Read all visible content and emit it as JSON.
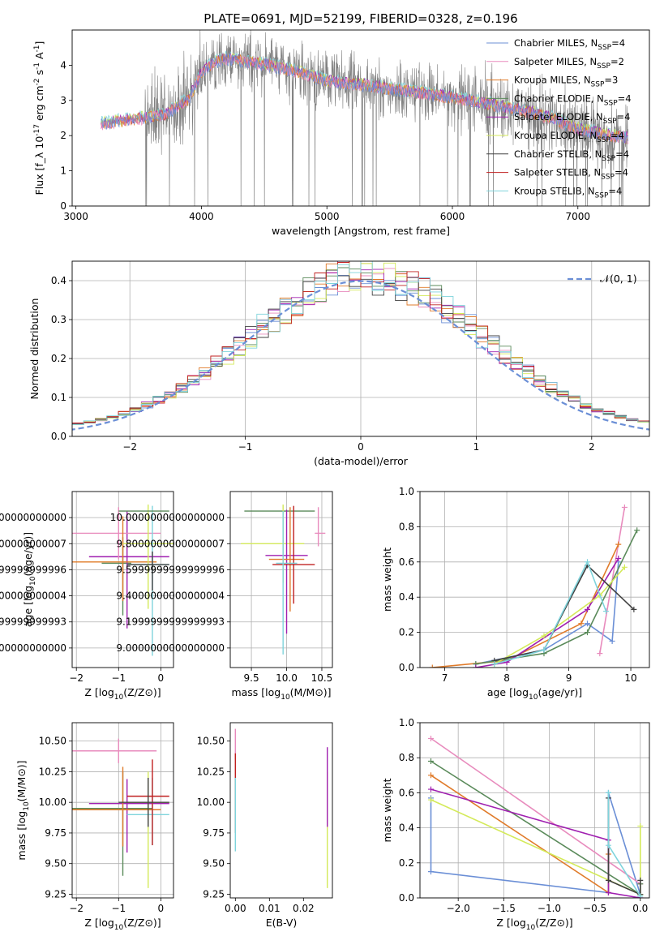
{
  "chart_data": [
    {
      "type": "line",
      "title": "PLATE=0691, MJD=52199, FIBERID=0328, z=0.196",
      "xlabel": "wavelength [Angstrom, rest frame]",
      "ylabel": "Flux [f_λ 10^-17 erg cm^-2 s^-1 A^-1]",
      "xlim": [
        2970,
        7570
      ],
      "ylim": [
        0,
        5
      ],
      "xticks": [
        3000,
        4000,
        5000,
        6000,
        7000
      ],
      "yticks": [
        0,
        1,
        2,
        3,
        4
      ],
      "grid": false,
      "legend": "top-right",
      "legend_entries": [
        "Chabrier MILES, N_SSP=4",
        "Salpeter MILES, N_SSP=2",
        "Kroupa MILES, N_SSP=3",
        "Chabrier ELODIE, N_SSP=4",
        "Salpeter ELODIE, N_SSP=4",
        "Kroupa ELODIE, N_SSP=4",
        "Chabrier STELIB, N_SSP=4",
        "Salpeter STELIB, N_SSP=4",
        "Kroupa STELIB, N_SSP=4"
      ],
      "series_colors": [
        "#6b8fd6",
        "#e88bbd",
        "#e07b2a",
        "#5a8a5a",
        "#a020b0",
        "#d4ea5a",
        "#404040",
        "#c02020",
        "#7fd4dc"
      ],
      "spectrum_continuum": {
        "x": [
          3200,
          3500,
          3700,
          3900,
          4000,
          4100,
          4200,
          4500,
          4800,
          5000,
          5300,
          5600,
          6000,
          6300,
          6600,
          6800,
          7000,
          7300,
          7400
        ],
        "y": [
          2.35,
          2.5,
          2.6,
          3.05,
          3.8,
          4.1,
          4.2,
          4.05,
          3.8,
          3.55,
          3.45,
          3.3,
          3.1,
          2.9,
          2.7,
          2.5,
          2.2,
          2.0,
          1.95
        ]
      }
    },
    {
      "type": "bar",
      "xlabel": "(data-model)/error",
      "ylabel": "Normed distribution",
      "xlim": [
        -2.5,
        2.5
      ],
      "ylim": [
        0,
        0.45
      ],
      "xticks": [
        -2,
        -1,
        0,
        1,
        2
      ],
      "yticks": [
        0.0,
        0.1,
        0.2,
        0.3,
        0.4
      ],
      "grid": true,
      "legend": "top-right",
      "legend_entries": [
        "𝒩(0, 1)"
      ],
      "reference_color": "#6b8fd6"
    },
    {
      "type": "scatter",
      "xlabel": "Z [log10(Z/Z⊙)]",
      "ylabel": "age  [log10(age/yr)]",
      "xlim": [
        -2.1,
        0.3
      ],
      "ylim": [
        8.85,
        10.2
      ],
      "xticks": [
        -2,
        -1,
        0
      ],
      "yticks": [
        9.0,
        9.2,
        9.4,
        9.6,
        9.8,
        10.0
      ],
      "grid": true,
      "points": [
        {
          "x": -0.9,
          "y": 9.65,
          "xerr": [
            0.5,
            0.2
          ],
          "yerr": [
            0.4,
            0.2
          ],
          "color": "#5a8a5a"
        },
        {
          "x": -0.8,
          "y": 9.7,
          "xerr": [
            0.9,
            1.0
          ],
          "yerr": [
            0.55,
            0.35
          ],
          "color": "#a020b0"
        },
        {
          "x": -1.0,
          "y": 9.88,
          "xerr": [
            1.1,
            1.0
          ],
          "yerr": [
            0.2,
            0.2
          ],
          "color": "#e88bbd"
        },
        {
          "x": -0.9,
          "y": 9.66,
          "xerr": [
            1.2,
            0.8
          ],
          "yerr": [
            0.3,
            0.35
          ],
          "color": "#e07b2a"
        },
        {
          "x": -0.3,
          "y": 9.8,
          "xerr": [
            0.6,
            0.6
          ],
          "yerr": [
            0.5,
            0.3
          ],
          "color": "#d4ea5a"
        },
        {
          "x": -0.2,
          "y": 9.64,
          "xerr": [
            0.6,
            0.4
          ],
          "yerr": [
            0.7,
            0.45
          ],
          "color": "#7fd4dc"
        },
        {
          "x": -0.3,
          "y": 10.05,
          "xerr": [
            0.7,
            0.5
          ],
          "yerr": [
            0.0,
            0.0
          ],
          "color": "#5a8a5a"
        },
        {
          "x": -0.2,
          "y": 9.64,
          "xerr": [
            0.6,
            0.4
          ],
          "yerr": [
            0.2,
            0.1
          ],
          "color": "#404040"
        }
      ]
    },
    {
      "type": "scatter",
      "xlabel": "mass [log10(M/M⊙)]",
      "ylabel": "",
      "xlim": [
        9.2,
        10.65
      ],
      "ylim": [
        8.85,
        10.2
      ],
      "xticks": [
        9.5,
        10.0,
        10.5
      ],
      "yticks": [
        9.0,
        9.2,
        9.4,
        9.6,
        9.8,
        10.0
      ],
      "grid": true,
      "points": [
        {
          "x": 10.0,
          "y": 10.05,
          "xerr": [
            0.6,
            0.4
          ],
          "yerr": [
            0.0,
            0.0
          ],
          "color": "#5a8a5a"
        },
        {
          "x": 9.95,
          "y": 9.8,
          "xerr": [
            0.6,
            0.3
          ],
          "yerr": [
            0.3,
            0.3
          ],
          "color": "#d4ea5a"
        },
        {
          "x": 10.0,
          "y": 9.71,
          "xerr": [
            0.3,
            0.3
          ],
          "yerr": [
            0.6,
            0.35
          ],
          "color": "#a020b0"
        },
        {
          "x": 10.05,
          "y": 9.68,
          "xerr": [
            0.3,
            0.2
          ],
          "yerr": [
            0.4,
            0.4
          ],
          "color": "#e07b2a"
        },
        {
          "x": 10.1,
          "y": 9.64,
          "xerr": [
            0.3,
            0.3
          ],
          "yerr": [
            0.3,
            0.45
          ],
          "color": "#c02020"
        },
        {
          "x": 9.95,
          "y": 9.65,
          "xerr": [
            0.1,
            0.2
          ],
          "yerr": [
            0.7,
            0.4
          ],
          "color": "#7fd4dc"
        },
        {
          "x": 10.45,
          "y": 9.88,
          "xerr": [
            0.05,
            0.1
          ],
          "yerr": [
            0.1,
            0.2
          ],
          "color": "#e88bbd"
        }
      ]
    },
    {
      "type": "line",
      "xlabel": "age  [log10(age/yr)]",
      "ylabel": "mass weight",
      "xlim": [
        6.6,
        10.3
      ],
      "ylim": [
        0,
        1.0
      ],
      "xticks": [
        7,
        8,
        9,
        10
      ],
      "yticks": [
        0.0,
        0.2,
        0.4,
        0.6,
        0.8,
        1.0
      ],
      "grid": true,
      "series": [
        {
          "color": "#6b8fd6",
          "x": [
            7.5,
            8.6,
            9.3,
            9.7,
            9.8
          ],
          "y": [
            0.02,
            0.1,
            0.25,
            0.15,
            0.6
          ]
        },
        {
          "color": "#e88bbd",
          "x": [
            9.5,
            9.9
          ],
          "y": [
            0.08,
            0.91
          ]
        },
        {
          "color": "#e07b2a",
          "x": [
            6.8,
            8.0,
            9.2,
            9.8
          ],
          "y": [
            0.0,
            0.04,
            0.25,
            0.7
          ]
        },
        {
          "color": "#5a8a5a",
          "x": [
            7.5,
            8.6,
            9.3,
            10.1
          ],
          "y": [
            0.02,
            0.08,
            0.2,
            0.78
          ]
        },
        {
          "color": "#a020b0",
          "x": [
            7.5,
            8.0,
            9.3,
            9.8
          ],
          "y": [
            0.0,
            0.03,
            0.33,
            0.62
          ]
        },
        {
          "color": "#d4ea5a",
          "x": [
            7.8,
            8.6,
            9.5,
            9.9
          ],
          "y": [
            0.02,
            0.18,
            0.41,
            0.57
          ]
        },
        {
          "color": "#404040",
          "x": [
            7.8,
            8.6,
            9.3,
            10.05
          ],
          "y": [
            0.04,
            0.1,
            0.58,
            0.33
          ]
        },
        {
          "color": "#7fd4dc",
          "x": [
            7.8,
            8.6,
            9.3,
            9.6
          ],
          "y": [
            0.02,
            0.1,
            0.6,
            0.32
          ]
        }
      ]
    },
    {
      "type": "scatter",
      "xlabel": "Z [log10(Z/Z⊙)]",
      "ylabel": "mass [log10(M/M⊙)]",
      "xlim": [
        -2.1,
        0.3
      ],
      "ylim": [
        9.22,
        10.65
      ],
      "xticks": [
        -2,
        -1,
        0
      ],
      "yticks": [
        9.25,
        9.5,
        9.75,
        10.0,
        10.25,
        10.5
      ],
      "grid": true,
      "points": [
        {
          "x": -1.0,
          "y": 10.42,
          "xerr": [
            1.1,
            0.9
          ],
          "yerr": [
            0.1,
            0.1
          ],
          "color": "#e88bbd"
        },
        {
          "x": -0.9,
          "y": 9.95,
          "xerr": [
            1.2,
            0.7
          ],
          "yerr": [
            0.55,
            0.3
          ],
          "color": "#5a8a5a"
        },
        {
          "x": -0.8,
          "y": 9.99,
          "xerr": [
            0.9,
            1.0
          ],
          "yerr": [
            0.4,
            0.2
          ],
          "color": "#a020b0"
        },
        {
          "x": -0.9,
          "y": 9.94,
          "xerr": [
            1.2,
            0.9
          ],
          "yerr": [
            0.3,
            0.35
          ],
          "color": "#e07b2a"
        },
        {
          "x": -0.3,
          "y": 10.0,
          "xerr": [
            0.5,
            0.5
          ],
          "yerr": [
            0.7,
            0.25
          ],
          "color": "#d4ea5a"
        },
        {
          "x": -0.2,
          "y": 9.9,
          "xerr": [
            0.6,
            0.4
          ],
          "yerr": [
            0.25,
            0.3
          ],
          "color": "#7fd4dc"
        },
        {
          "x": -0.2,
          "y": 10.05,
          "xerr": [
            0.6,
            0.4
          ],
          "yerr": [
            0.4,
            0.3
          ],
          "color": "#c02020"
        },
        {
          "x": -0.3,
          "y": 10.0,
          "xerr": [
            0.7,
            0.5
          ],
          "yerr": [
            0.2,
            0.2
          ],
          "color": "#404040"
        }
      ]
    },
    {
      "type": "scatter",
      "xlabel": "E(B-V)",
      "ylabel": "",
      "xlim": [
        -0.0015,
        0.0285
      ],
      "ylim": [
        9.22,
        10.65
      ],
      "xticks": [
        0.0,
        0.01,
        0.02
      ],
      "yticks": [
        9.25,
        9.5,
        9.75,
        10.0,
        10.25,
        10.5
      ],
      "grid": false,
      "points": [
        {
          "x": 0.0,
          "y": 10.45,
          "yerr": [
            0.1,
            0.15
          ],
          "color": "#e88bbd"
        },
        {
          "x": 0.0,
          "y": 10.0,
          "yerr": [
            0.25,
            0.4
          ],
          "color": "#c02020"
        },
        {
          "x": 0.0,
          "y": 9.9,
          "yerr": [
            0.3,
            0.3
          ],
          "color": "#7fd4dc"
        },
        {
          "x": 0.027,
          "y": 10.0,
          "yerr": [
            0.7,
            0.25
          ],
          "color": "#d4ea5a"
        },
        {
          "x": 0.027,
          "y": 10.2,
          "yerr": [
            0.4,
            0.25
          ],
          "color": "#a020b0"
        }
      ]
    },
    {
      "type": "line",
      "xlabel": "Z [log10(Z/Z⊙)]",
      "ylabel": "mass weight",
      "xlim": [
        -2.42,
        0.1
      ],
      "ylim": [
        0,
        1.0
      ],
      "xticks": [
        -2.0,
        -1.5,
        -1.0,
        -0.5,
        0.0
      ],
      "yticks": [
        0.0,
        0.2,
        0.4,
        0.6,
        0.8,
        1.0
      ],
      "grid": true,
      "series": [
        {
          "color": "#6b8fd6",
          "x": [
            -2.3,
            -2.3,
            -0.35,
            -0.35,
            0.0
          ],
          "y": [
            0.57,
            0.15,
            0.03,
            0.6,
            0.02
          ]
        },
        {
          "color": "#e88bbd",
          "x": [
            -2.3,
            0.0
          ],
          "y": [
            0.91,
            0.08
          ]
        },
        {
          "color": "#e07b2a",
          "x": [
            -2.3,
            -0.35,
            -0.35
          ],
          "y": [
            0.7,
            0.03,
            0.25
          ]
        },
        {
          "color": "#5a8a5a",
          "x": [
            -2.3,
            0.0,
            0.0
          ],
          "y": [
            0.78,
            0.02,
            0.08
          ]
        },
        {
          "color": "#a020b0",
          "x": [
            -2.3,
            -0.35,
            -0.35,
            0.0
          ],
          "y": [
            0.62,
            0.33,
            0.03,
            0.0
          ]
        },
        {
          "color": "#d4ea5a",
          "x": [
            -2.3,
            0.0,
            0.0
          ],
          "y": [
            0.56,
            0.02,
            0.41
          ]
        },
        {
          "color": "#404040",
          "x": [
            -0.35,
            -0.35,
            0.0,
            0.0
          ],
          "y": [
            0.57,
            0.1,
            0.02,
            0.1
          ]
        },
        {
          "color": "#7fd4dc",
          "x": [
            -0.35,
            -0.35,
            0.0
          ],
          "y": [
            0.6,
            0.3,
            0.01
          ]
        }
      ]
    }
  ]
}
